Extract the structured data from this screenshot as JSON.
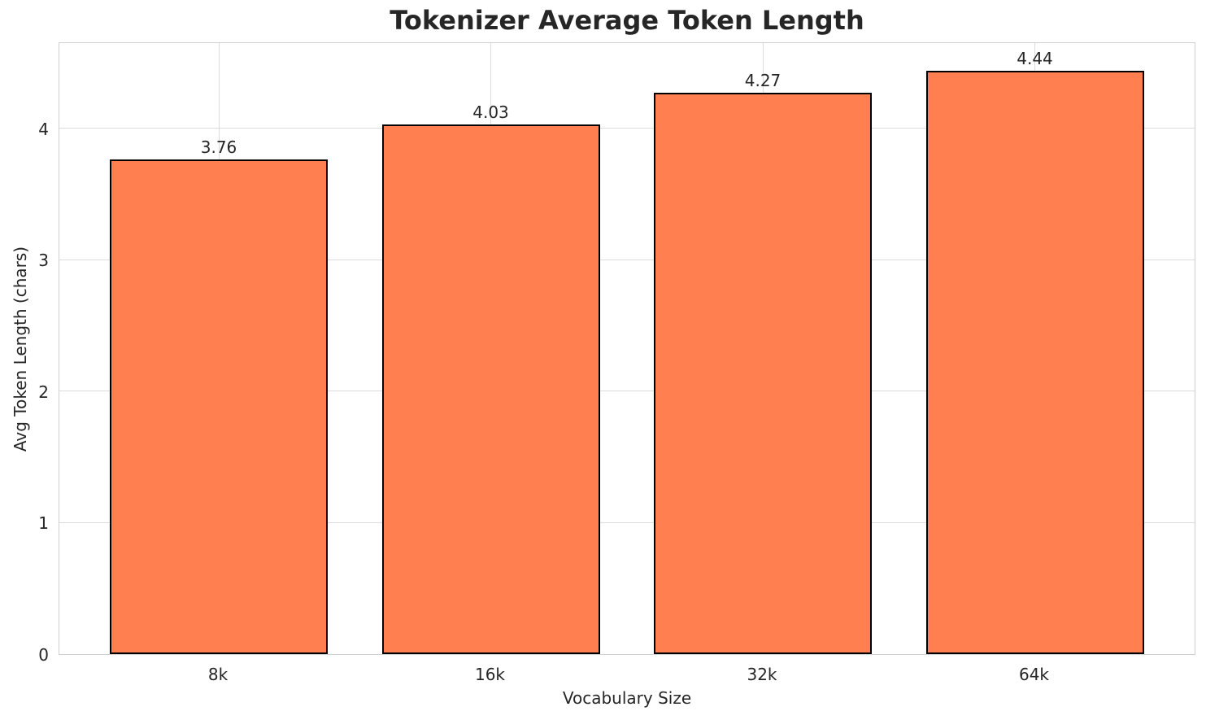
{
  "chart_data": {
    "type": "bar",
    "title": "Tokenizer Average Token Length",
    "xlabel": "Vocabulary Size",
    "ylabel": "Avg Token Length (chars)",
    "categories": [
      "8k",
      "16k",
      "32k",
      "64k"
    ],
    "values": [
      3.76,
      4.03,
      4.27,
      4.44
    ],
    "value_labels": [
      "3.76",
      "4.03",
      "4.27",
      "4.44"
    ],
    "yticks": [
      0,
      1,
      2,
      3,
      4
    ],
    "ylim": [
      0,
      4.66
    ],
    "grid": true,
    "legend_position": "none",
    "bar_color": "#ff7f50",
    "bar_edge_color": "#000000",
    "grid_color": "#dcdcdc",
    "axes_edge_color": "#d0d0d0",
    "text_color": "#262626",
    "background_color": "#ffffff"
  }
}
